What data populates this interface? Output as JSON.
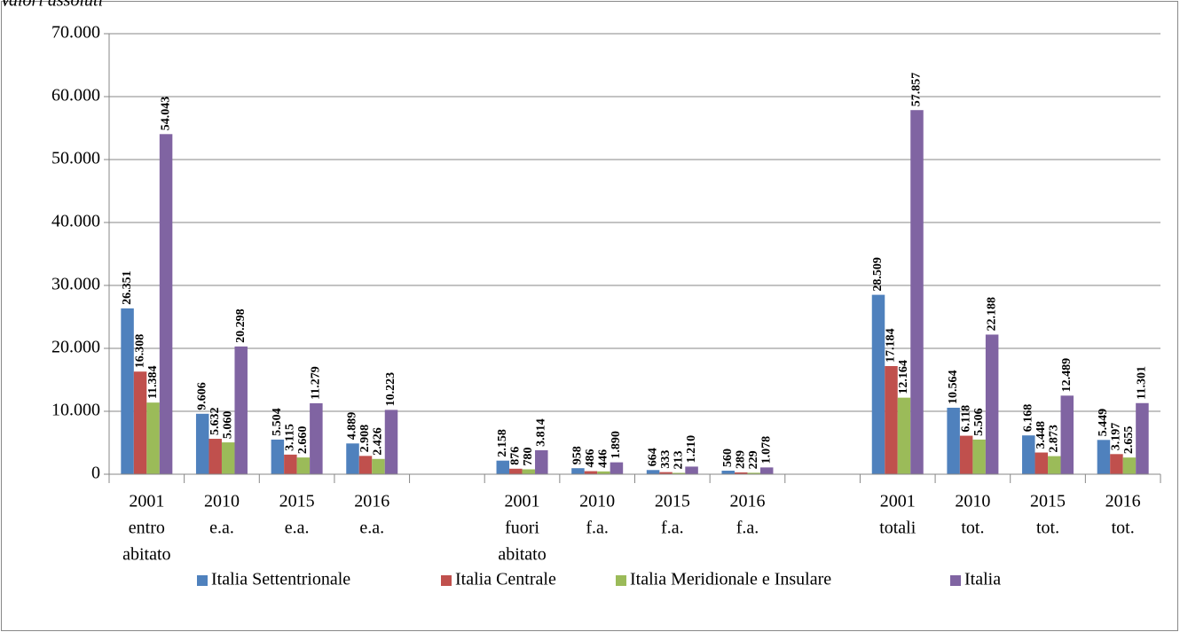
{
  "chart_data": {
    "type": "bar",
    "subtitle": "Valori assoluti",
    "categories": [
      [
        "2001",
        "entro",
        "abitato"
      ],
      [
        "2010",
        "e.a."
      ],
      [
        "2015",
        "e.a."
      ],
      [
        "2016",
        "e.a."
      ],
      null,
      [
        "2001",
        "fuori",
        "abitato"
      ],
      [
        "2010",
        "f.a."
      ],
      [
        "2015",
        "f.a."
      ],
      [
        "2016",
        "f.a."
      ],
      null,
      [
        "2001",
        "totali"
      ],
      [
        "2010",
        "tot."
      ],
      [
        "2015",
        "tot."
      ],
      [
        "2016",
        "tot."
      ]
    ],
    "series": [
      {
        "name": "Italia Settentrionale",
        "color": "#4f81bd",
        "values": [
          26351,
          9606,
          5504,
          4889,
          null,
          2158,
          958,
          664,
          560,
          null,
          28509,
          10564,
          6168,
          5449
        ],
        "value_labels": [
          "26.351",
          "9.606",
          "5.504",
          "4.889",
          null,
          "2.158",
          "958",
          "664",
          "560",
          null,
          "28.509",
          "10.564",
          "6.168",
          "5.449"
        ]
      },
      {
        "name": "Italia Centrale",
        "color": "#c0504d",
        "values": [
          16308,
          5632,
          3115,
          2908,
          null,
          876,
          486,
          333,
          289,
          null,
          17184,
          6118,
          3448,
          3197
        ],
        "value_labels": [
          "16.308",
          "5.632",
          "3.115",
          "2.908",
          null,
          "876",
          "486",
          "333",
          "289",
          null,
          "17.184",
          "6.118",
          "3.448",
          "3.197"
        ]
      },
      {
        "name": "Italia Meridionale e Insulare",
        "color": "#9bbb59",
        "values": [
          11384,
          5060,
          2660,
          2426,
          null,
          780,
          446,
          213,
          229,
          null,
          12164,
          5506,
          2873,
          2655
        ],
        "value_labels": [
          "11.384",
          "5.060",
          "2.660",
          "2.426",
          null,
          "780",
          "446",
          "213",
          "229",
          null,
          "12.164",
          "5.506",
          "2.873",
          "2.655"
        ]
      },
      {
        "name": "Italia",
        "color": "#8064a2",
        "values": [
          54043,
          20298,
          11279,
          10223,
          null,
          3814,
          1890,
          1210,
          1078,
          null,
          57857,
          22188,
          12489,
          11301
        ],
        "value_labels": [
          "54.043",
          "20.298",
          "11.279",
          "10.223",
          null,
          "3.814",
          "1.890",
          "1.210",
          "1.078",
          null,
          "57.857",
          "22.188",
          "12.489",
          "11.301"
        ]
      }
    ],
    "ylim": [
      0,
      70000
    ],
    "yticks": [
      0,
      {
        "value": 10000,
        "label": "10.000"
      },
      {
        "value": 20000,
        "label": "20.000"
      },
      {
        "value": 30000,
        "label": "30.000"
      },
      {
        "value": 40000,
        "label": "40.000"
      },
      {
        "value": 50000,
        "label": "50.000"
      },
      {
        "value": 60000,
        "label": "60.000"
      },
      {
        "value": 70000,
        "label": "70.000"
      }
    ],
    "grid": true,
    "legend": "bottom"
  }
}
